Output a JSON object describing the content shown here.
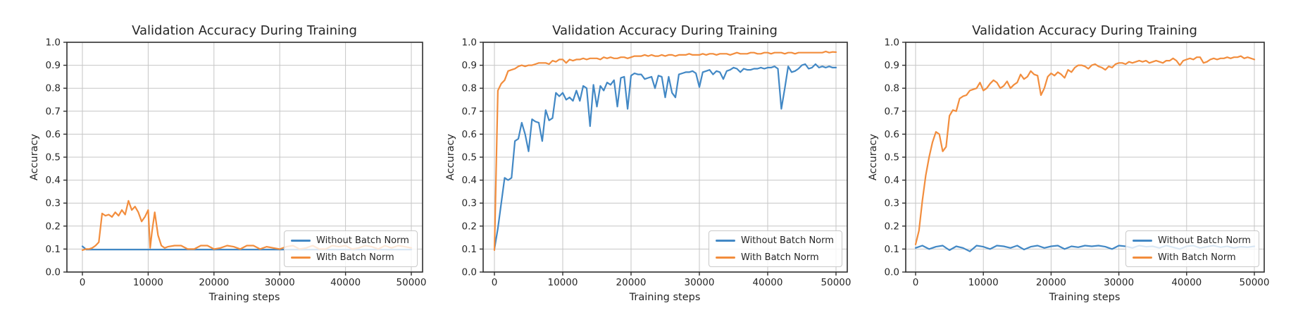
{
  "chart_data": [
    {
      "type": "line",
      "title": "Validation Accuracy During Training",
      "xlabel": "Training steps",
      "ylabel": "Accuracy",
      "xlim": [
        0,
        50000
      ],
      "ylim": [
        0.0,
        1.0
      ],
      "grid": true,
      "legend_position": "lower right",
      "x_ticks": [
        0,
        10000,
        20000,
        30000,
        40000,
        50000
      ],
      "x_tick_labels": [
        "0",
        "10000",
        "20000",
        "30000",
        "40000",
        "50000"
      ],
      "y_ticks": [
        0.0,
        0.1,
        0.2,
        0.3,
        0.4,
        0.5,
        0.6,
        0.7,
        0.8,
        0.9,
        1.0
      ],
      "y_tick_labels": [
        "0.0",
        "0.1",
        "0.2",
        "0.3",
        "0.4",
        "0.5",
        "0.6",
        "0.7",
        "0.8",
        "0.9",
        "1.0"
      ],
      "series": [
        {
          "name": "Without Batch Norm",
          "color": "#4288c5",
          "x": [
            0,
            600,
            50000
          ],
          "y": [
            0.112,
            0.098,
            0.098
          ]
        },
        {
          "name": "With Batch Norm",
          "color": "#f28d3d",
          "x": [
            0,
            500,
            1000,
            1500,
            2000,
            2500,
            3000,
            3500,
            4000,
            4500,
            5000,
            5500,
            6000,
            6500,
            7000,
            7500,
            8000,
            8500,
            9000,
            9500,
            10000,
            10300,
            10600,
            11000,
            11500,
            12000,
            12500,
            13000,
            14000,
            15000,
            16000,
            17000,
            18000,
            19000,
            20000,
            21000,
            22000,
            23000,
            24000,
            25000,
            26000,
            27000,
            28000,
            29000,
            30000,
            31000,
            32000,
            33000,
            34000,
            35000,
            36000,
            37000,
            38000,
            39000,
            40000,
            41000,
            42000,
            43000,
            44000,
            45000,
            46000,
            47000,
            48000,
            49000,
            50000
          ],
          "y": [
            0.095,
            0.1,
            0.1,
            0.105,
            0.115,
            0.13,
            0.255,
            0.245,
            0.25,
            0.24,
            0.26,
            0.245,
            0.27,
            0.25,
            0.31,
            0.27,
            0.285,
            0.26,
            0.22,
            0.24,
            0.27,
            0.105,
            0.18,
            0.26,
            0.16,
            0.115,
            0.105,
            0.11,
            0.115,
            0.115,
            0.1,
            0.1,
            0.115,
            0.115,
            0.1,
            0.105,
            0.115,
            0.11,
            0.1,
            0.115,
            0.115,
            0.1,
            0.11,
            0.105,
            0.1,
            0.11,
            0.115,
            0.1,
            0.105,
            0.115,
            0.1,
            0.1,
            0.115,
            0.11,
            0.115,
            0.1,
            0.105,
            0.115,
            0.11,
            0.1,
            0.115,
            0.105,
            0.115,
            0.11,
            0.105
          ]
        }
      ]
    },
    {
      "type": "line",
      "title": "Validation Accuracy During Training",
      "xlabel": "Training steps",
      "ylabel": "Accuracy",
      "xlim": [
        0,
        50000
      ],
      "ylim": [
        0.0,
        1.0
      ],
      "grid": true,
      "legend_position": "lower right",
      "x_ticks": [
        0,
        10000,
        20000,
        30000,
        40000,
        50000
      ],
      "x_tick_labels": [
        "0",
        "10000",
        "20000",
        "30000",
        "40000",
        "50000"
      ],
      "y_ticks": [
        0.0,
        0.1,
        0.2,
        0.3,
        0.4,
        0.5,
        0.6,
        0.7,
        0.8,
        0.9,
        1.0
      ],
      "y_tick_labels": [
        "0.0",
        "0.1",
        "0.2",
        "0.3",
        "0.4",
        "0.5",
        "0.6",
        "0.7",
        "0.8",
        "0.9",
        "1.0"
      ],
      "series": [
        {
          "name": "Without Batch Norm",
          "color": "#4288c5",
          "x_start": 0,
          "x_step": 500,
          "y": [
            0.1,
            0.19,
            0.3,
            0.41,
            0.4,
            0.41,
            0.57,
            0.58,
            0.65,
            0.6,
            0.525,
            0.665,
            0.655,
            0.65,
            0.57,
            0.705,
            0.66,
            0.67,
            0.78,
            0.765,
            0.78,
            0.75,
            0.76,
            0.745,
            0.79,
            0.745,
            0.81,
            0.8,
            0.635,
            0.815,
            0.72,
            0.81,
            0.79,
            0.825,
            0.815,
            0.835,
            0.72,
            0.845,
            0.85,
            0.71,
            0.855,
            0.865,
            0.86,
            0.86,
            0.84,
            0.845,
            0.85,
            0.8,
            0.855,
            0.85,
            0.76,
            0.85,
            0.78,
            0.76,
            0.86,
            0.865,
            0.87,
            0.87,
            0.875,
            0.865,
            0.805,
            0.87,
            0.875,
            0.88,
            0.86,
            0.875,
            0.87,
            0.84,
            0.875,
            0.88,
            0.89,
            0.885,
            0.87,
            0.885,
            0.88,
            0.88,
            0.885,
            0.885,
            0.89,
            0.885,
            0.89,
            0.89,
            0.895,
            0.885,
            0.71,
            0.8,
            0.895,
            0.87,
            0.875,
            0.885,
            0.9,
            0.905,
            0.885,
            0.89,
            0.905,
            0.89,
            0.895,
            0.89,
            0.895,
            0.89,
            0.89
          ]
        },
        {
          "name": "With Batch Norm",
          "color": "#f28d3d",
          "x_start": 0,
          "x_step": 500,
          "y": [
            0.095,
            0.79,
            0.82,
            0.835,
            0.875,
            0.88,
            0.885,
            0.895,
            0.9,
            0.895,
            0.9,
            0.9,
            0.905,
            0.91,
            0.91,
            0.91,
            0.905,
            0.92,
            0.915,
            0.925,
            0.925,
            0.91,
            0.925,
            0.92,
            0.925,
            0.925,
            0.93,
            0.925,
            0.93,
            0.93,
            0.93,
            0.925,
            0.935,
            0.93,
            0.935,
            0.93,
            0.93,
            0.935,
            0.935,
            0.93,
            0.935,
            0.94,
            0.94,
            0.94,
            0.945,
            0.94,
            0.945,
            0.94,
            0.94,
            0.945,
            0.94,
            0.945,
            0.945,
            0.94,
            0.945,
            0.945,
            0.945,
            0.95,
            0.945,
            0.945,
            0.945,
            0.95,
            0.945,
            0.95,
            0.95,
            0.945,
            0.95,
            0.95,
            0.95,
            0.945,
            0.95,
            0.955,
            0.95,
            0.95,
            0.95,
            0.955,
            0.955,
            0.95,
            0.95,
            0.955,
            0.955,
            0.95,
            0.955,
            0.955,
            0.955,
            0.95,
            0.955,
            0.955,
            0.95,
            0.955,
            0.955,
            0.955,
            0.955,
            0.955,
            0.955,
            0.955,
            0.955,
            0.96,
            0.955,
            0.958,
            0.957
          ]
        }
      ]
    },
    {
      "type": "line",
      "title": "Validation Accuracy During Training",
      "xlabel": "Training steps",
      "ylabel": "Accuracy",
      "xlim": [
        0,
        50000
      ],
      "ylim": [
        0.0,
        1.0
      ],
      "grid": true,
      "legend_position": "lower right",
      "x_ticks": [
        0,
        10000,
        20000,
        30000,
        40000,
        50000
      ],
      "x_tick_labels": [
        "0",
        "10000",
        "20000",
        "30000",
        "40000",
        "50000"
      ],
      "y_ticks": [
        0.0,
        0.1,
        0.2,
        0.3,
        0.4,
        0.5,
        0.6,
        0.7,
        0.8,
        0.9,
        1.0
      ],
      "y_tick_labels": [
        "0.0",
        "0.1",
        "0.2",
        "0.3",
        "0.4",
        "0.5",
        "0.6",
        "0.7",
        "0.8",
        "0.9",
        "1.0"
      ],
      "series": [
        {
          "name": "Without Batch Norm",
          "color": "#4288c5",
          "x_start": 0,
          "x_step": 1000,
          "y": [
            0.105,
            0.115,
            0.1,
            0.11,
            0.115,
            0.095,
            0.112,
            0.105,
            0.09,
            0.115,
            0.11,
            0.1,
            0.115,
            0.112,
            0.105,
            0.115,
            0.098,
            0.11,
            0.115,
            0.105,
            0.112,
            0.115,
            0.1,
            0.112,
            0.108,
            0.115,
            0.112,
            0.115,
            0.11,
            0.1,
            0.115,
            0.112,
            0.105,
            0.115,
            0.11,
            0.112,
            0.105,
            0.115,
            0.108,
            0.1,
            0.112,
            0.115,
            0.105,
            0.11,
            0.115,
            0.108,
            0.112,
            0.105,
            0.11,
            0.108,
            0.112
          ]
        },
        {
          "name": "With Batch Norm",
          "color": "#f28d3d",
          "x_start": 0,
          "x_step": 500,
          "y": [
            0.12,
            0.18,
            0.31,
            0.42,
            0.5,
            0.565,
            0.61,
            0.6,
            0.525,
            0.545,
            0.68,
            0.705,
            0.7,
            0.755,
            0.765,
            0.77,
            0.79,
            0.795,
            0.8,
            0.825,
            0.79,
            0.8,
            0.82,
            0.835,
            0.825,
            0.8,
            0.81,
            0.83,
            0.8,
            0.815,
            0.825,
            0.86,
            0.84,
            0.85,
            0.875,
            0.86,
            0.855,
            0.77,
            0.8,
            0.85,
            0.865,
            0.855,
            0.87,
            0.86,
            0.845,
            0.88,
            0.87,
            0.89,
            0.9,
            0.9,
            0.895,
            0.885,
            0.9,
            0.905,
            0.895,
            0.89,
            0.88,
            0.895,
            0.89,
            0.905,
            0.91,
            0.91,
            0.905,
            0.915,
            0.91,
            0.915,
            0.92,
            0.915,
            0.92,
            0.91,
            0.915,
            0.92,
            0.915,
            0.91,
            0.92,
            0.92,
            0.93,
            0.92,
            0.9,
            0.92,
            0.925,
            0.93,
            0.925,
            0.935,
            0.935,
            0.91,
            0.915,
            0.925,
            0.93,
            0.925,
            0.93,
            0.93,
            0.935,
            0.93,
            0.935,
            0.935,
            0.94,
            0.93,
            0.935,
            0.93,
            0.925
          ]
        }
      ]
    }
  ]
}
